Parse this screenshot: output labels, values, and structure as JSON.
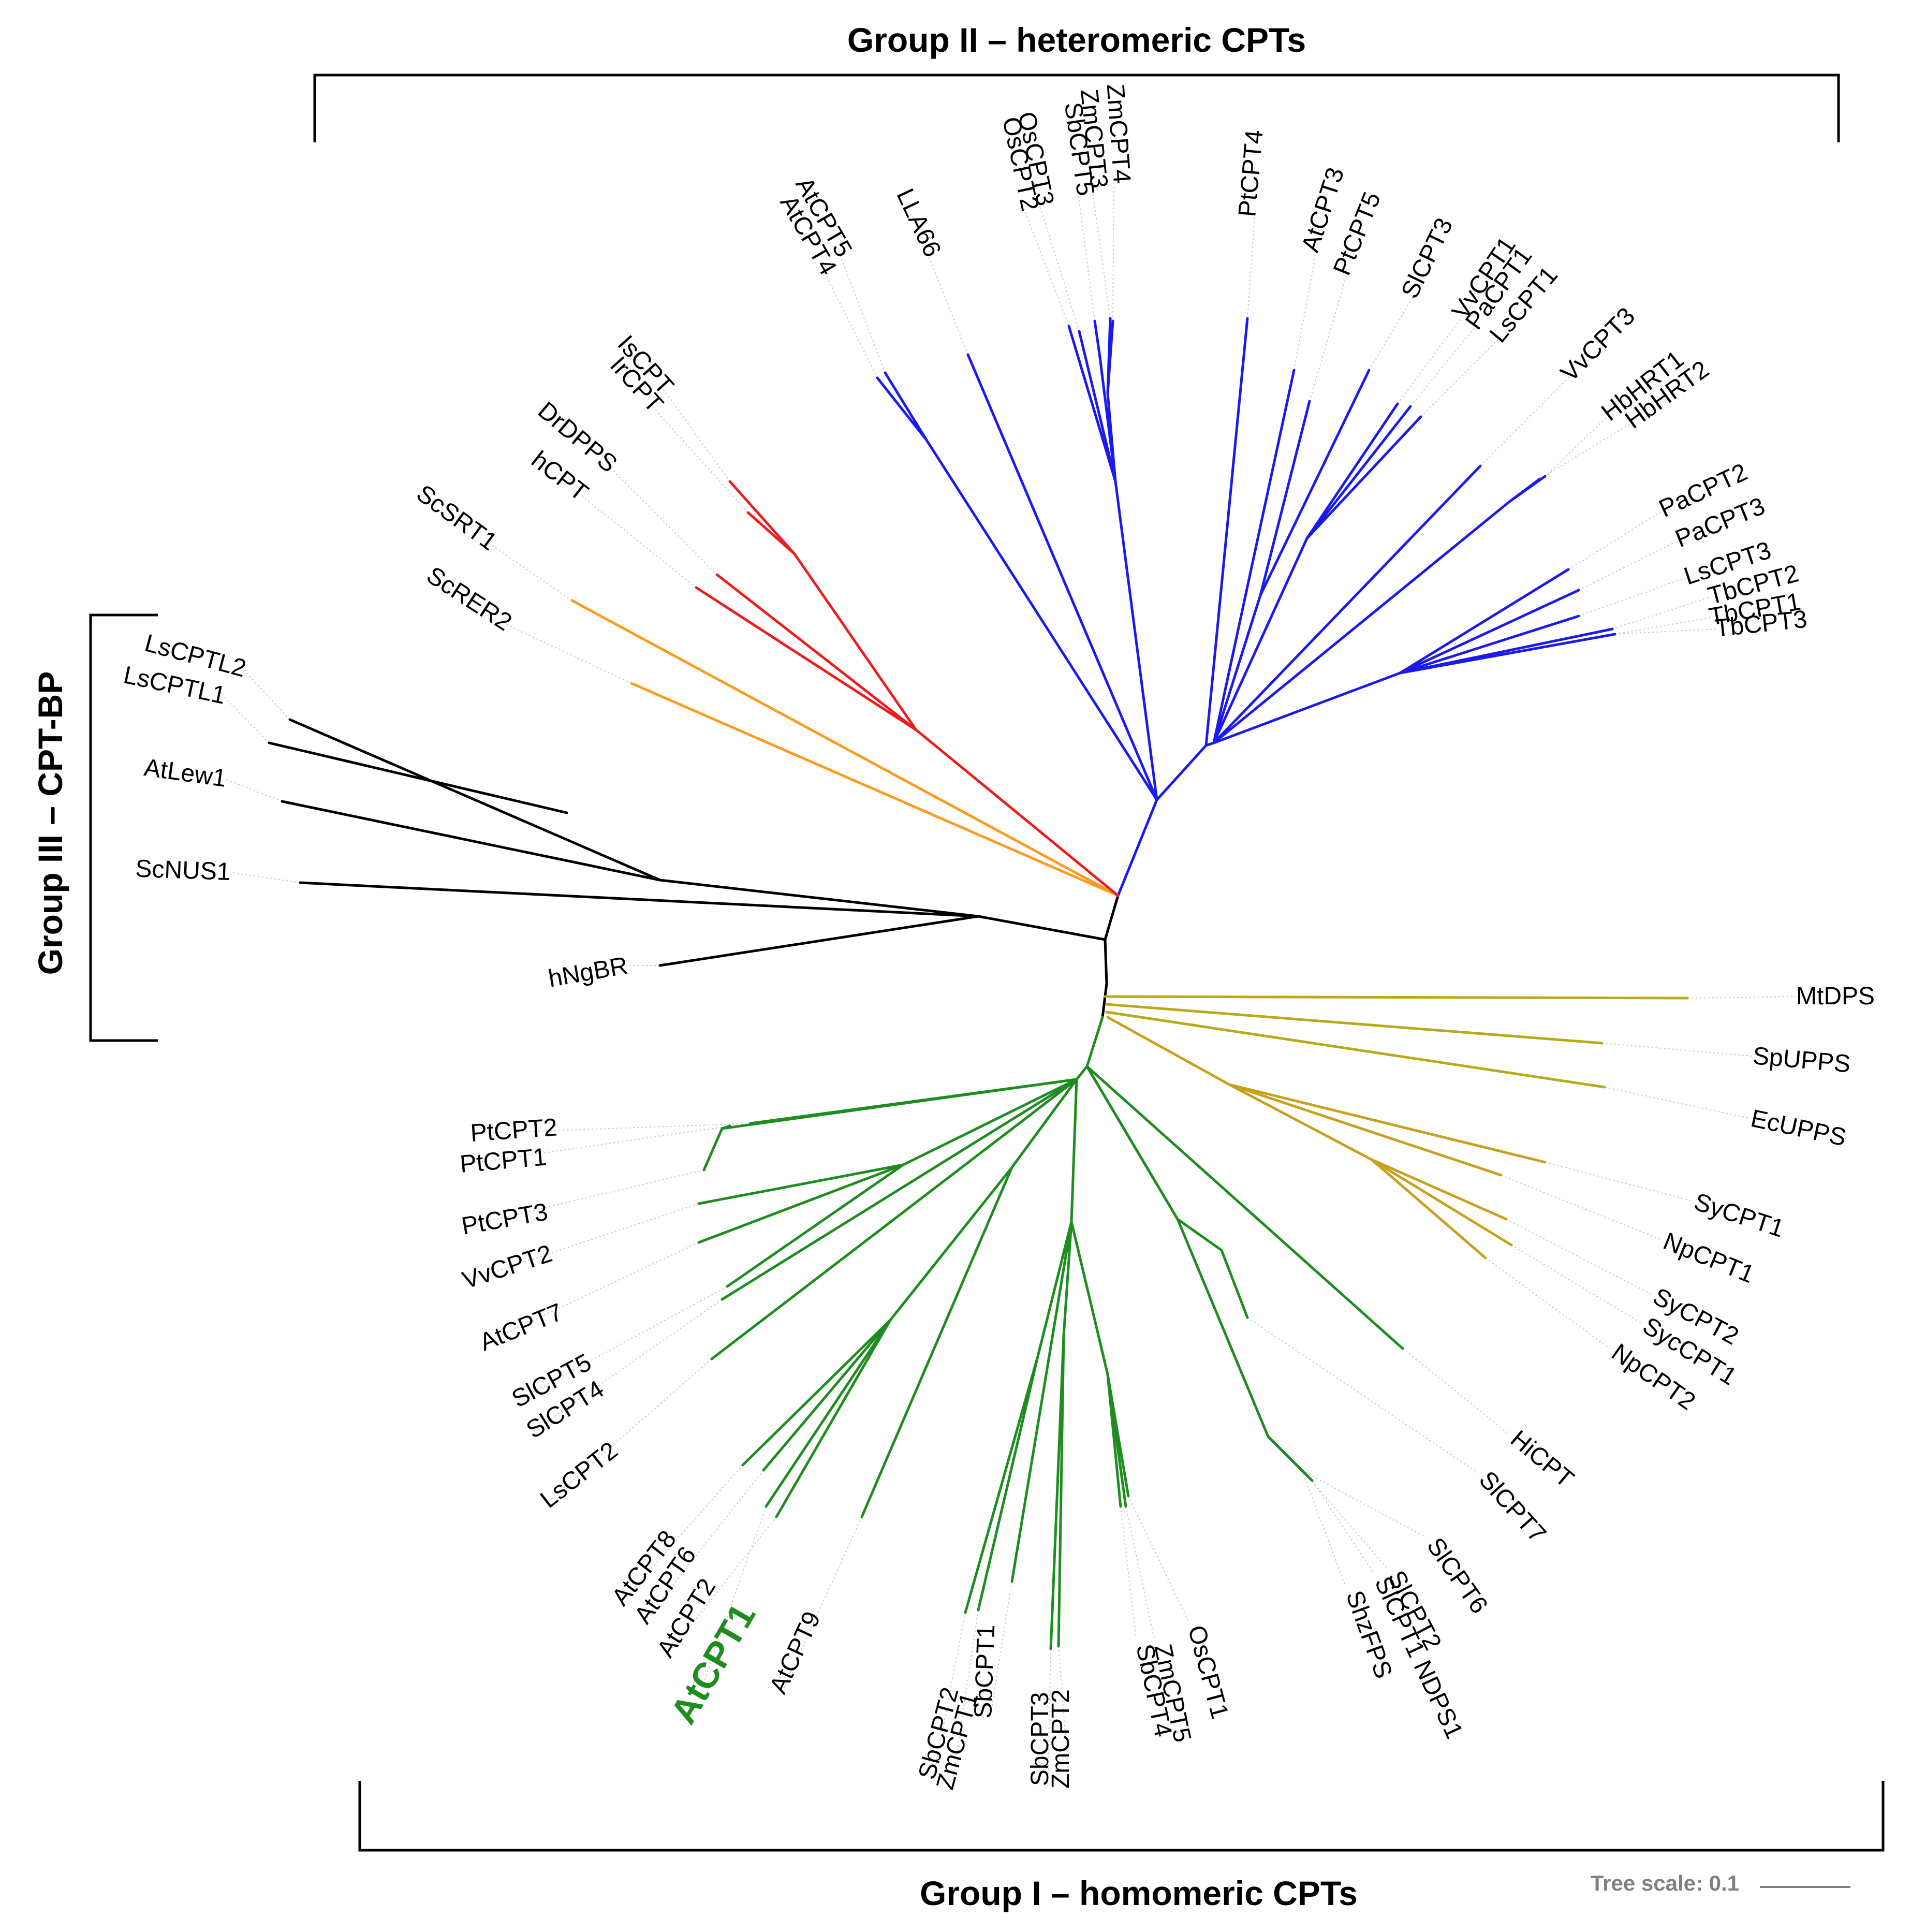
{
  "title_group2": "Group II – heteromeric CPTs",
  "title_group3": "Group III – CPT-BP",
  "title_group1": "Group I – homomeric CPTs",
  "scale": {
    "label": "Tree scale: 0.1",
    "value": 0.1
  },
  "colors": {
    "group1_green": "#1e8c1e",
    "group2_blue": "#1a1aee",
    "red": "#ee1c1c",
    "orange": "#ff9a1e",
    "black": "#000000",
    "olive": "#b8aa1a",
    "gold": "#c8a01e"
  },
  "leaves": [
    {
      "id": "LsCPTL2",
      "label": "LsCPTL2"
    },
    {
      "id": "LsCPTL1",
      "label": "LsCPTL1"
    },
    {
      "id": "AtLew1",
      "label": "AtLew1"
    },
    {
      "id": "ScNUS1",
      "label": "ScNUS1"
    },
    {
      "id": "hNgBR",
      "label": "hNgBR"
    },
    {
      "id": "ScRER2",
      "label": "ScRER2"
    },
    {
      "id": "ScSRT1",
      "label": "ScSRT1"
    },
    {
      "id": "hCPT",
      "label": "hCPT"
    },
    {
      "id": "DrDPPS",
      "label": "DrDPPS"
    },
    {
      "id": "IrCPT",
      "label": "IrCPT"
    },
    {
      "id": "IsCPT",
      "label": "IsCPT"
    },
    {
      "id": "AtCPT4",
      "label": "AtCPT4"
    },
    {
      "id": "AtCPT5",
      "label": "AtCPT5"
    },
    {
      "id": "LLA66",
      "label": "LLA66"
    },
    {
      "id": "OsCPT2",
      "label": "OsCPT2"
    },
    {
      "id": "OsCPT3",
      "label": "OsCPT3"
    },
    {
      "id": "SbCPT5",
      "label": "SbCPT5"
    },
    {
      "id": "ZmCPT3",
      "label": "ZmCPT3"
    },
    {
      "id": "ZmCPT4",
      "label": "ZmCPT4"
    },
    {
      "id": "PtCPT4",
      "label": "PtCPT4"
    },
    {
      "id": "AtCPT3",
      "label": "AtCPT3"
    },
    {
      "id": "PtCPT5",
      "label": "PtCPT5"
    },
    {
      "id": "SlCPT3",
      "label": "SlCPT3"
    },
    {
      "id": "VvCPT1",
      "label": "VvCPT1"
    },
    {
      "id": "PaCPT1",
      "label": "PaCPT1"
    },
    {
      "id": "LsCPT1",
      "label": "LsCPT1"
    },
    {
      "id": "VvCPT3",
      "label": "VvCPT3"
    },
    {
      "id": "HbHRT1",
      "label": "HbHRT1"
    },
    {
      "id": "HbHRT2",
      "label": "HbHRT2"
    },
    {
      "id": "PaCPT2",
      "label": "PaCPT2"
    },
    {
      "id": "PaCPT3",
      "label": "PaCPT3"
    },
    {
      "id": "LsCPT3",
      "label": "LsCPT3"
    },
    {
      "id": "TbCPT2",
      "label": "TbCPT2"
    },
    {
      "id": "TbCPT1",
      "label": "TbCPT1"
    },
    {
      "id": "TbCPT3",
      "label": "TbCPT3"
    },
    {
      "id": "MtDPS",
      "label": "MtDPS"
    },
    {
      "id": "SpUPPS",
      "label": "SpUPPS"
    },
    {
      "id": "EcUPPS",
      "label": "EcUPPS"
    },
    {
      "id": "SyCPT1",
      "label": "SyCPT1"
    },
    {
      "id": "NpCPT1",
      "label": "NpCPT1"
    },
    {
      "id": "SyCPT2",
      "label": "SyCPT2"
    },
    {
      "id": "SycCPT1",
      "label": "SycCPT1"
    },
    {
      "id": "NpCPT2",
      "label": "NpCPT2"
    },
    {
      "id": "HiCPT",
      "label": "HiCPT"
    },
    {
      "id": "SlCPT7",
      "label": "SlCPT7"
    },
    {
      "id": "SlCPT6",
      "label": "SlCPT6"
    },
    {
      "id": "SlCPT2",
      "label": "SlCPT2"
    },
    {
      "id": "SlCPT1NDPS1",
      "label": "SlCPT1 NDPS1"
    },
    {
      "id": "ShzFPS",
      "label": "ShzFPS"
    },
    {
      "id": "OsCPT1",
      "label": "OsCPT1"
    },
    {
      "id": "ZmCPT5",
      "label": "ZmCPT5"
    },
    {
      "id": "SbCPT4",
      "label": "SbCPT4"
    },
    {
      "id": "ZmCPT2",
      "label": "ZmCPT2"
    },
    {
      "id": "SbCPT3",
      "label": "SbCPT3"
    },
    {
      "id": "SbCPT1",
      "label": "SbCPT1"
    },
    {
      "id": "ZmCPT1",
      "label": "ZmCPT1"
    },
    {
      "id": "SbCPT2",
      "label": "SbCPT2"
    },
    {
      "id": "AtCPT9",
      "label": "AtCPT9"
    },
    {
      "id": "AtCPT1",
      "label": "AtCPT1",
      "highlight": true
    },
    {
      "id": "AtCPT2",
      "label": "AtCPT2"
    },
    {
      "id": "AtCPT6",
      "label": "AtCPT6"
    },
    {
      "id": "AtCPT8",
      "label": "AtCPT8"
    },
    {
      "id": "LsCPT2",
      "label": "LsCPT2"
    },
    {
      "id": "SlCPT4",
      "label": "SlCPT4"
    },
    {
      "id": "SlCPT5",
      "label": "SlCPT5"
    },
    {
      "id": "AtCPT7",
      "label": "AtCPT7"
    },
    {
      "id": "VvCPT2",
      "label": "VvCPT2"
    },
    {
      "id": "PtCPT3",
      "label": "PtCPT3"
    },
    {
      "id": "PtCPT1",
      "label": "PtCPT1"
    },
    {
      "id": "PtCPT2",
      "label": "PtCPT2"
    }
  ]
}
